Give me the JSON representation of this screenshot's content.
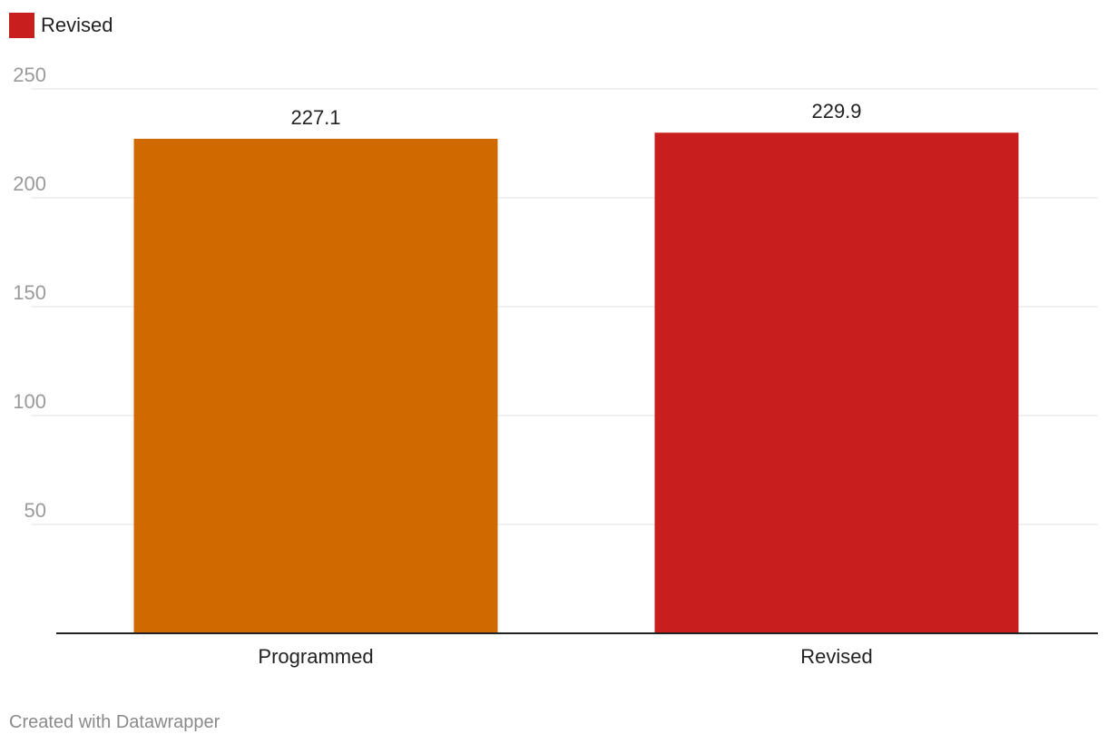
{
  "legend": {
    "items": [
      {
        "label": "Revised",
        "color": "#c81e1e"
      }
    ]
  },
  "footer": {
    "credit": "Created with Datawrapper"
  },
  "chart_data": {
    "type": "bar",
    "categories": [
      "Programmed",
      "Revised"
    ],
    "values": [
      227.1,
      229.9
    ],
    "data_labels": [
      "227.1",
      "229.9"
    ],
    "bar_colors": [
      "#d06a00",
      "#c81e1e"
    ],
    "yticks": [
      50,
      100,
      150,
      200,
      250
    ],
    "ylim": [
      0,
      250
    ],
    "grid": true,
    "legend_position": "top-left",
    "title": "",
    "xlabel": "",
    "ylabel": ""
  }
}
